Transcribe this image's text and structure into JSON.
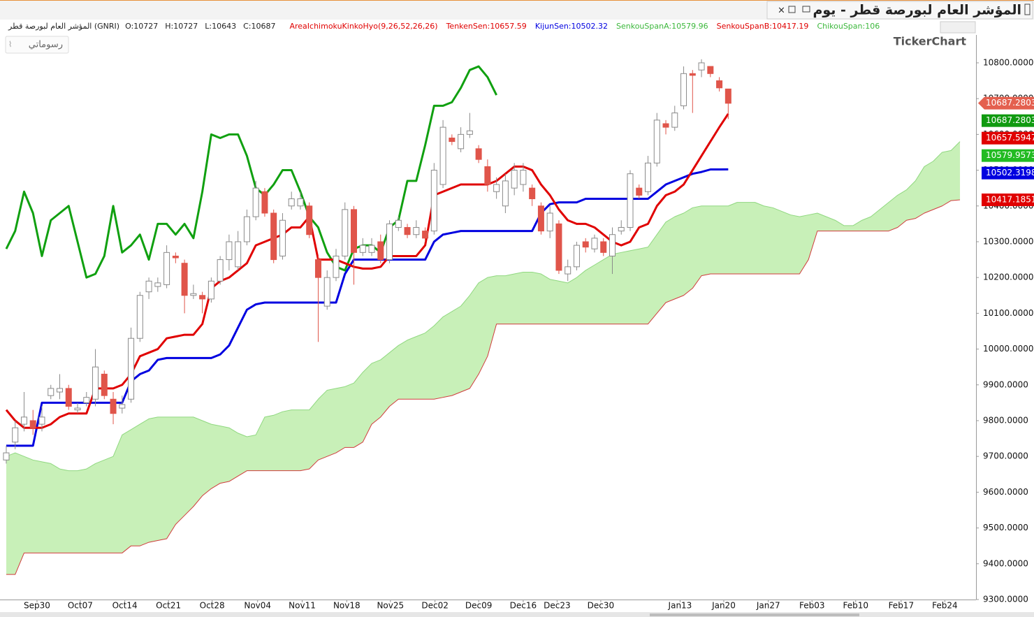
{
  "window_title": "المؤشر العام لبورصة قطر - يوم",
  "drawings_button": "رسوماتي",
  "logo": "TickerChart",
  "info": {
    "symbol": "المؤشر العام لبورصة قطر (GNRI)",
    "ohlc": [
      "O:10727",
      "H:10727",
      "L:10643",
      "C:10687"
    ],
    "indicator": "AreaIchimokuKinkoHyo(9,26,52,26,26)",
    "lines": [
      {
        "text": "TenkenSen:10657.59",
        "color": "#e00000"
      },
      {
        "text": "KijunSen:10502.32",
        "color": "#0000e0"
      },
      {
        "text": "SenkouSpanA:10579.96",
        "color": "#3cb83c"
      },
      {
        "text": "SenkouSpanB:10417.19",
        "color": "#e00000"
      },
      {
        "text": "ChikouSpan:106",
        "color": "#3cb83c"
      }
    ]
  },
  "chart_data": {
    "type": "candlestick",
    "up_color": "#ffffff",
    "down_color": "#e0554a",
    "cloud_color": "#c8f0b8",
    "xlim": [
      -0.31,
      108.8
    ],
    "ylim": [
      9300,
      10878
    ],
    "xticks": [
      {
        "value": 3.45,
        "label": "Sep30"
      },
      {
        "value": 8.3,
        "label": "Oct07"
      },
      {
        "value": 13.3,
        "label": "Oct14"
      },
      {
        "value": 18.2,
        "label": "Oct21"
      },
      {
        "value": 23.1,
        "label": "Oct28"
      },
      {
        "value": 28.2,
        "label": "Nov04"
      },
      {
        "value": 33.2,
        "label": "Nov11"
      },
      {
        "value": 38.2,
        "label": "Nov18"
      },
      {
        "value": 43.1,
        "label": "Nov25"
      },
      {
        "value": 48.1,
        "label": "Dec02"
      },
      {
        "value": 53.0,
        "label": "Dec09"
      },
      {
        "value": 58.0,
        "label": "Dec16"
      },
      {
        "value": 61.8,
        "label": "Dec23"
      },
      {
        "value": 66.7,
        "label": "Dec30"
      },
      {
        "value": 75.6,
        "label": "Jan13"
      },
      {
        "value": 80.5,
        "label": "Jan20"
      },
      {
        "value": 85.5,
        "label": "Jan27"
      },
      {
        "value": 90.4,
        "label": "Feb03"
      },
      {
        "value": 95.3,
        "label": "Feb10"
      },
      {
        "value": 100.4,
        "label": "Feb17"
      },
      {
        "value": 105.3,
        "label": "Feb24"
      }
    ],
    "yticks": [
      {
        "value": 9300,
        "label": "9300.0000"
      },
      {
        "value": 9400,
        "label": "9400.0000"
      },
      {
        "value": 9500,
        "label": "9500.0000"
      },
      {
        "value": 9600,
        "label": "9600.0000"
      },
      {
        "value": 9700,
        "label": "9700.0000"
      },
      {
        "value": 9800,
        "label": "9800.0000"
      },
      {
        "value": 9900,
        "label": "9900.0000"
      },
      {
        "value": 10000,
        "label": "10000.0000"
      },
      {
        "value": 10100,
        "label": "10100.0000"
      },
      {
        "value": 10200,
        "label": "10200.0000"
      },
      {
        "value": 10300,
        "label": "10300.0000"
      },
      {
        "value": 10400,
        "label": "10400.0000"
      },
      {
        "value": 10500,
        "label": "10500.0000"
      },
      {
        "value": 10600,
        "label": "10600.0000"
      },
      {
        "value": 10700,
        "label": "10700.0000"
      },
      {
        "value": 10800,
        "label": "10800.0000"
      }
    ],
    "open": [
      9690,
      9740,
      9790,
      9800,
      9790,
      9870,
      9880,
      9890,
      9830,
      9850,
      9860,
      9930,
      9860,
      9835,
      9860,
      10030,
      10160,
      10175,
      10180,
      10260,
      10240,
      10150,
      10150,
      10140,
      10190,
      10250,
      10230,
      10300,
      10370,
      10440,
      10380,
      10260,
      10400,
      10400,
      10400,
      10250,
      10120,
      10200,
      10260,
      10390,
      10270,
      10270,
      10300,
      10250,
      10340,
      10340,
      10320,
      10330,
      10330,
      10460,
      10590,
      10560,
      10600,
      10560,
      10510,
      10440,
      10400,
      10450,
      10460,
      10450,
      10400,
      10330,
      10350,
      10210,
      10230,
      10300,
      10280,
      10300,
      10260,
      10330,
      10340,
      10450,
      10440,
      10520,
      10630,
      10620,
      10680,
      10770,
      10780,
      10790,
      10750,
      10727
    ],
    "high": [
      9730,
      9800,
      9880,
      9830,
      9840,
      9900,
      9930,
      9900,
      9850,
      9880,
      10000,
      9940,
      9880,
      9870,
      10060,
      10160,
      10200,
      10200,
      10290,
      10270,
      10250,
      10180,
      10160,
      10200,
      10260,
      10320,
      10330,
      10390,
      10470,
      10450,
      10390,
      10380,
      10440,
      10440,
      10410,
      10260,
      10220,
      10280,
      10410,
      10400,
      10310,
      10310,
      10320,
      10360,
      10370,
      10350,
      10360,
      10340,
      10520,
      10640,
      10600,
      10620,
      10660,
      10570,
      10530,
      10480,
      10490,
      10520,
      10520,
      10460,
      10410,
      10400,
      10360,
      10250,
      10300,
      10310,
      10320,
      10310,
      10340,
      10360,
      10500,
      10460,
      10540,
      10660,
      10640,
      10680,
      10790,
      10780,
      10810,
      10790,
      10760,
      10727
    ],
    "low": [
      9680,
      9720,
      9770,
      9760,
      9770,
      9860,
      9860,
      9830,
      9820,
      9840,
      9840,
      9860,
      9790,
      9820,
      9850,
      10020,
      10140,
      10160,
      10170,
      10240,
      10100,
      10140,
      10100,
      10130,
      10180,
      10220,
      10220,
      10290,
      10360,
      10370,
      10240,
      10250,
      10390,
      10390,
      10310,
      10020,
      10110,
      10190,
      10250,
      10180,
      10260,
      10260,
      10240,
      10240,
      10330,
      10310,
      10310,
      10300,
      10320,
      10450,
      10570,
      10550,
      10590,
      10520,
      10440,
      10420,
      10380,
      10430,
      10440,
      10400,
      10320,
      10310,
      10210,
      10190,
      10220,
      10270,
      10270,
      10260,
      10210,
      10320,
      10330,
      10420,
      10430,
      10510,
      10600,
      10610,
      10670,
      10660,
      10760,
      10760,
      10720,
      10643
    ],
    "close": [
      9710,
      9780,
      9810,
      9780,
      9810,
      9890,
      9890,
      9840,
      9835,
      9865,
      9950,
      9870,
      9820,
      9845,
      10030,
      10150,
      10190,
      10185,
      10270,
      10255,
      10150,
      10155,
      10140,
      10190,
      10250,
      10300,
      10300,
      10370,
      10450,
      10380,
      10250,
      10360,
      10420,
      10420,
      10320,
      10200,
      10200,
      10260,
      10390,
      10270,
      10290,
      10290,
      10250,
      10350,
      10360,
      10320,
      10340,
      10310,
      10500,
      10620,
      10580,
      10600,
      10610,
      10530,
      10460,
      10460,
      10470,
      10500,
      10500,
      10420,
      10330,
      10380,
      10220,
      10230,
      10290,
      10285,
      10310,
      10270,
      10320,
      10340,
      10490,
      10430,
      10520,
      10640,
      10620,
      10660,
      10770,
      10765,
      10800,
      10770,
      10730,
      10687
    ],
    "series": [
      {
        "color": "#90d880",
        "width": 1,
        "values": [
          9700,
          9710,
          9700,
          9690,
          9685,
          9680,
          9665,
          9660,
          9660,
          9665,
          9680,
          9690,
          9700,
          9760,
          9775,
          9790,
          9805,
          9810,
          9810,
          9810,
          9810,
          9810,
          9800,
          9790,
          9785,
          9780,
          9765,
          9755,
          9760,
          9810,
          9815,
          9825,
          9830,
          9830,
          9830,
          9860,
          9885,
          9890,
          9895,
          9905,
          9935,
          9960,
          9970,
          9990,
          10010,
          10025,
          10035,
          10045,
          10065,
          10090,
          10105,
          10120,
          10150,
          10185,
          10200,
          10205,
          10205,
          10210,
          10215,
          10215,
          10210,
          10195,
          10190,
          10185,
          10200,
          10220,
          10235,
          10250,
          10265,
          10270,
          10275,
          10280,
          10285,
          10320,
          10355,
          10370,
          10380,
          10395,
          10400,
          10400,
          10400,
          10400,
          10410,
          10410,
          10410,
          10400,
          10395,
          10385,
          10375,
          10370,
          10375,
          10380,
          10370,
          10360,
          10345,
          10345,
          10360,
          10370,
          10390,
          10410,
          10430,
          10445,
          10470,
          10510,
          10525,
          10550,
          10555,
          10579.96
        ]
      },
      {
        "color": "#d03c3c",
        "width": 1,
        "values": [
          9370,
          9370,
          9430,
          9430,
          9430,
          9430,
          9430,
          9430,
          9430,
          9430,
          9430,
          9430,
          9430,
          9430,
          9450,
          9450,
          9460,
          9465,
          9470,
          9510,
          9535,
          9560,
          9590,
          9610,
          9625,
          9630,
          9645,
          9660,
          9660,
          9660,
          9660,
          9660,
          9660,
          9660,
          9665,
          9690,
          9700,
          9710,
          9725,
          9725,
          9740,
          9790,
          9810,
          9840,
          9860,
          9860,
          9860,
          9860,
          9860,
          9865,
          9870,
          9880,
          9890,
          9930,
          9980,
          10070,
          10070,
          10070,
          10070,
          10070,
          10070,
          10070,
          10070,
          10070,
          10070,
          10070,
          10070,
          10070,
          10070,
          10070,
          10070,
          10070,
          10070,
          10100,
          10130,
          10140,
          10150,
          10170,
          10205,
          10210,
          10210,
          10210,
          10210,
          10210,
          10210,
          10210,
          10210,
          10210,
          10210,
          10210,
          10250,
          10330,
          10330,
          10330,
          10330,
          10330,
          10330,
          10330,
          10330,
          10330,
          10340,
          10360,
          10365,
          10380,
          10390,
          10400,
          10415,
          10417.19
        ]
      },
      {
        "color": "#10a010",
        "width": 3,
        "values": [
          10280,
          10330,
          10440,
          10380,
          10260,
          10360,
          10380,
          10400,
          10300,
          10200,
          10210,
          10260,
          10400,
          10270,
          10290,
          10320,
          10250,
          10350,
          10350,
          10320,
          10350,
          10310,
          10440,
          10600,
          10590,
          10600,
          10600,
          10540,
          10450,
          10430,
          10460,
          10500,
          10500,
          10440,
          10370,
          10340,
          10270,
          10230,
          10220,
          10280,
          10290,
          10290,
          10270,
          10340,
          10360,
          10470,
          10470,
          10570,
          10680,
          10680,
          10690,
          10730,
          10780,
          10790,
          10760,
          10710
        ]
      },
      {
        "color": "#0000e0",
        "width": 3,
        "values": [
          9730,
          9730,
          9730,
          9730,
          9850,
          9850,
          9850,
          9850,
          9850,
          9850,
          9850,
          9850,
          9850,
          9850,
          9910,
          9930,
          9940,
          9970,
          9975,
          9975,
          9975,
          9975,
          9975,
          9975,
          9985,
          10010,
          10060,
          10110,
          10125,
          10130,
          10130,
          10130,
          10130,
          10130,
          10130,
          10130,
          10130,
          10130,
          10210,
          10250,
          10250,
          10250,
          10250,
          10250,
          10250,
          10250,
          10250,
          10250,
          10300,
          10320,
          10325,
          10330,
          10330,
          10330,
          10330,
          10330,
          10330,
          10330,
          10330,
          10330,
          10380,
          10405,
          10410,
          10410,
          10410,
          10420,
          10420,
          10420,
          10420,
          10420,
          10420,
          10420,
          10420,
          10440,
          10460,
          10470,
          10480,
          10490,
          10495,
          10502,
          10502,
          10502.32
        ]
      },
      {
        "color": "#e00000",
        "width": 3,
        "values": [
          9830,
          9800,
          9780,
          9780,
          9780,
          9790,
          9810,
          9820,
          9820,
          9820,
          9890,
          9890,
          9890,
          9900,
          9930,
          9980,
          9990,
          10000,
          10030,
          10035,
          10040,
          10040,
          10070,
          10170,
          10190,
          10200,
          10220,
          10240,
          10290,
          10300,
          10310,
          10320,
          10340,
          10340,
          10370,
          10250,
          10250,
          10250,
          10240,
          10230,
          10225,
          10225,
          10230,
          10260,
          10260,
          10260,
          10260,
          10290,
          10430,
          10440,
          10450,
          10460,
          10460,
          10460,
          10460,
          10470,
          10490,
          10510,
          10510,
          10500,
          10460,
          10430,
          10390,
          10360,
          10350,
          10350,
          10340,
          10320,
          10300,
          10290,
          10300,
          10340,
          10350,
          10400,
          10430,
          10440,
          10460,
          10500,
          10540,
          10580,
          10620,
          10657.59
        ]
      }
    ],
    "price_labels": [
      {
        "value": 10687.2803,
        "color": "#e4604f"
      },
      {
        "value": 10687.2803,
        "color": "#109a10"
      },
      {
        "value": 10657.5947,
        "color": "#e00000"
      },
      {
        "value": 10579.9573,
        "color": "#22bb22"
      },
      {
        "value": 10502.3198,
        "color": "#0000e0"
      },
      {
        "value": 10417.1851,
        "color": "#e00000"
      }
    ]
  }
}
